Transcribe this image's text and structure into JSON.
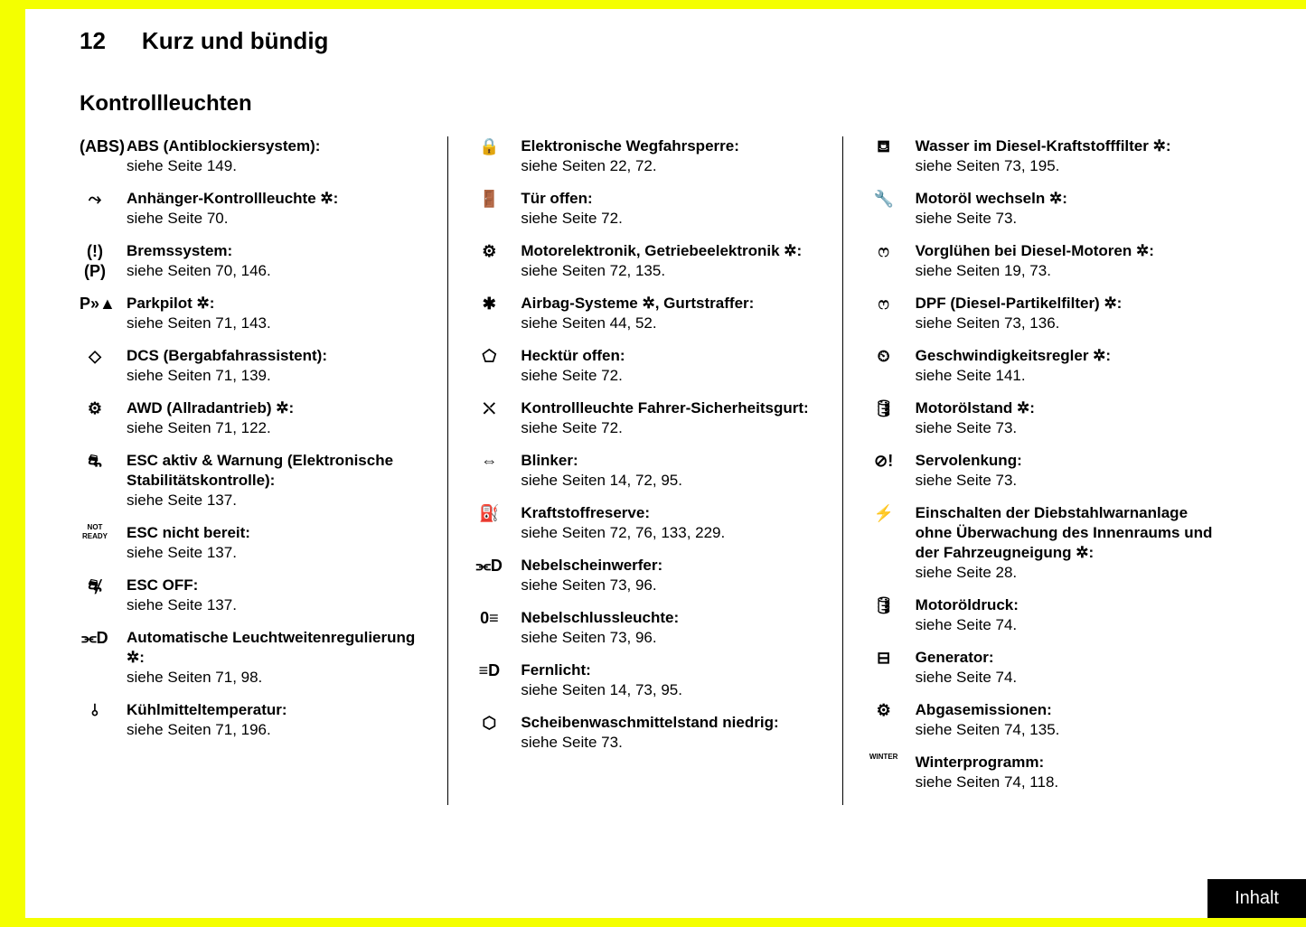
{
  "page_number": "12",
  "chapter": "Kurz und bündig",
  "section_title": "Kontrollleuchten",
  "star_symbol": " ✲",
  "footer_button": "Inhalt",
  "columns": [
    [
      {
        "icon": "(ABS)",
        "icon_class": "",
        "label": "ABS (Antiblockiersystem):",
        "star": false,
        "ref": "siehe Seite 149."
      },
      {
        "icon": "⤳",
        "icon_class": "",
        "label": "Anhänger-Kontrollleuchte",
        "star": true,
        "suffix": ":",
        "ref": "siehe Seite 70."
      },
      {
        "icon": "(!)(P)",
        "icon_class": "",
        "label": "Bremssystem:",
        "star": false,
        "ref": "siehe Seiten 70, 146."
      },
      {
        "icon": "P»▲",
        "icon_class": "",
        "label": "Parkpilot",
        "star": true,
        "suffix": ":",
        "ref": "siehe Seiten 71, 143."
      },
      {
        "icon": "◇",
        "icon_class": "",
        "label": "DCS (Bergabfahrassistent):",
        "star": false,
        "ref": "siehe Seiten 71, 139."
      },
      {
        "icon": "⚙",
        "icon_class": "",
        "label": "AWD (Allradantrieb)",
        "star": true,
        "suffix": ":",
        "ref": "siehe Seiten 71, 122."
      },
      {
        "icon": "⛐",
        "icon_class": "",
        "label": "ESC aktiv & Warnung (Elektronische Stabilitätskontrolle):",
        "star": false,
        "ref": "siehe Seite 137."
      },
      {
        "icon": "NOT READY",
        "icon_class": "text-icon",
        "label": "ESC nicht bereit:",
        "star": false,
        "ref": "siehe Seite 137."
      },
      {
        "icon": "⛐̸",
        "icon_class": "",
        "label": "ESC OFF:",
        "star": false,
        "ref": "siehe Seite 137."
      },
      {
        "icon": "⫘D",
        "icon_class": "",
        "label": "Automatische Leuchtweitenregulierung",
        "star": true,
        "suffix": ":",
        "ref": "siehe Seiten 71, 98."
      },
      {
        "icon": "⫰",
        "icon_class": "",
        "label": "Kühlmitteltemperatur:",
        "star": false,
        "ref": "siehe Seiten 71, 196."
      }
    ],
    [
      {
        "icon": "🔒",
        "icon_class": "",
        "label": "Elektronische Wegfahrsperre:",
        "star": false,
        "ref": "siehe Seiten 22, 72."
      },
      {
        "icon": "🚪",
        "icon_class": "",
        "label": "Tür offen:",
        "star": false,
        "ref": "siehe Seite 72."
      },
      {
        "icon": "⚙",
        "icon_class": "",
        "label": "Motorelektronik, Getriebeelektronik",
        "star": true,
        "suffix": ":",
        "ref": "siehe Seiten 72, 135."
      },
      {
        "icon": "✱",
        "icon_class": "",
        "label": "Airbag-Systeme ✲, Gurtstraffer:",
        "star": false,
        "ref": "siehe Seiten 44, 52."
      },
      {
        "icon": "⬠",
        "icon_class": "",
        "label": "Hecktür offen:",
        "star": false,
        "ref": "siehe Seite 72."
      },
      {
        "icon": "⛌",
        "icon_class": "",
        "label": "Kontrollleuchte Fahrer-Sicherheitsgurt:",
        "star": false,
        "ref": "siehe Seite 72."
      },
      {
        "icon": "⇔",
        "icon_class": "",
        "label": "Blinker:",
        "star": false,
        "ref": "siehe Seiten 14, 72, 95."
      },
      {
        "icon": "⛽",
        "icon_class": "",
        "label": "Kraftstoffreserve:",
        "star": false,
        "ref": "siehe Seiten 72, 76, 133, 229."
      },
      {
        "icon": "⫘D",
        "icon_class": "",
        "label": "Nebelscheinwerfer:",
        "star": false,
        "ref": "siehe Seiten 73, 96."
      },
      {
        "icon": "0≡",
        "icon_class": "",
        "label": "Nebelschlussleuchte:",
        "star": false,
        "ref": "siehe Seiten 73, 96."
      },
      {
        "icon": "≡D",
        "icon_class": "",
        "label": "Fernlicht:",
        "star": false,
        "ref": "siehe Seiten 14, 73, 95."
      },
      {
        "icon": "⬡",
        "icon_class": "",
        "label": "Scheibenwaschmittelstand niedrig:",
        "star": false,
        "ref": "siehe Seite 73."
      }
    ],
    [
      {
        "icon": "⛾",
        "icon_class": "",
        "label": "Wasser im Diesel-Kraftstofffilter",
        "star": true,
        "suffix": ":",
        "ref": "siehe Seiten 73, 195."
      },
      {
        "icon": "🔧",
        "icon_class": "",
        "label": "Motoröl wechseln",
        "star": true,
        "suffix": ":",
        "ref": "siehe Seite 73."
      },
      {
        "icon": "ෆ",
        "icon_class": "",
        "label": "Vorglühen bei Diesel-Motoren",
        "star": true,
        "suffix": ":",
        "ref": "siehe Seiten 19, 73."
      },
      {
        "icon": "ෆ",
        "icon_class": "",
        "label": "DPF (Diesel-Partikelfilter)",
        "star": true,
        "suffix": ":",
        "ref": "siehe Seiten 73, 136."
      },
      {
        "icon": "⏲",
        "icon_class": "",
        "label": "Geschwindigkeitsregler",
        "star": true,
        "suffix": ":",
        "ref": "siehe Seite 141."
      },
      {
        "icon": "🛢",
        "icon_class": "",
        "label": "Motorölstand",
        "star": true,
        "suffix": ":",
        "ref": "siehe Seite 73."
      },
      {
        "icon": "⊘!",
        "icon_class": "",
        "label": "Servolenkung:",
        "star": false,
        "ref": "siehe Seite 73."
      },
      {
        "icon": "⚡",
        "icon_class": "",
        "label": "Einschalten der Diebstahlwarnanlage ohne Überwachung des Innenraums und der Fahrzeugneigung",
        "star": true,
        "suffix": ":",
        "ref": "siehe Seite 28."
      },
      {
        "icon": "🛢",
        "icon_class": "",
        "label": "Motoröldruck:",
        "star": false,
        "ref": "siehe Seite 74."
      },
      {
        "icon": "⊟",
        "icon_class": "",
        "label": "Generator:",
        "star": false,
        "ref": "siehe Seite 74."
      },
      {
        "icon": "⚙",
        "icon_class": "",
        "label": "Abgasemissionen:",
        "star": false,
        "ref": "siehe Seiten 74, 135."
      },
      {
        "icon": "WINTER",
        "icon_class": "text-icon",
        "label": "Winterprogramm:",
        "star": false,
        "ref": "siehe Seiten 74, 118."
      }
    ]
  ]
}
